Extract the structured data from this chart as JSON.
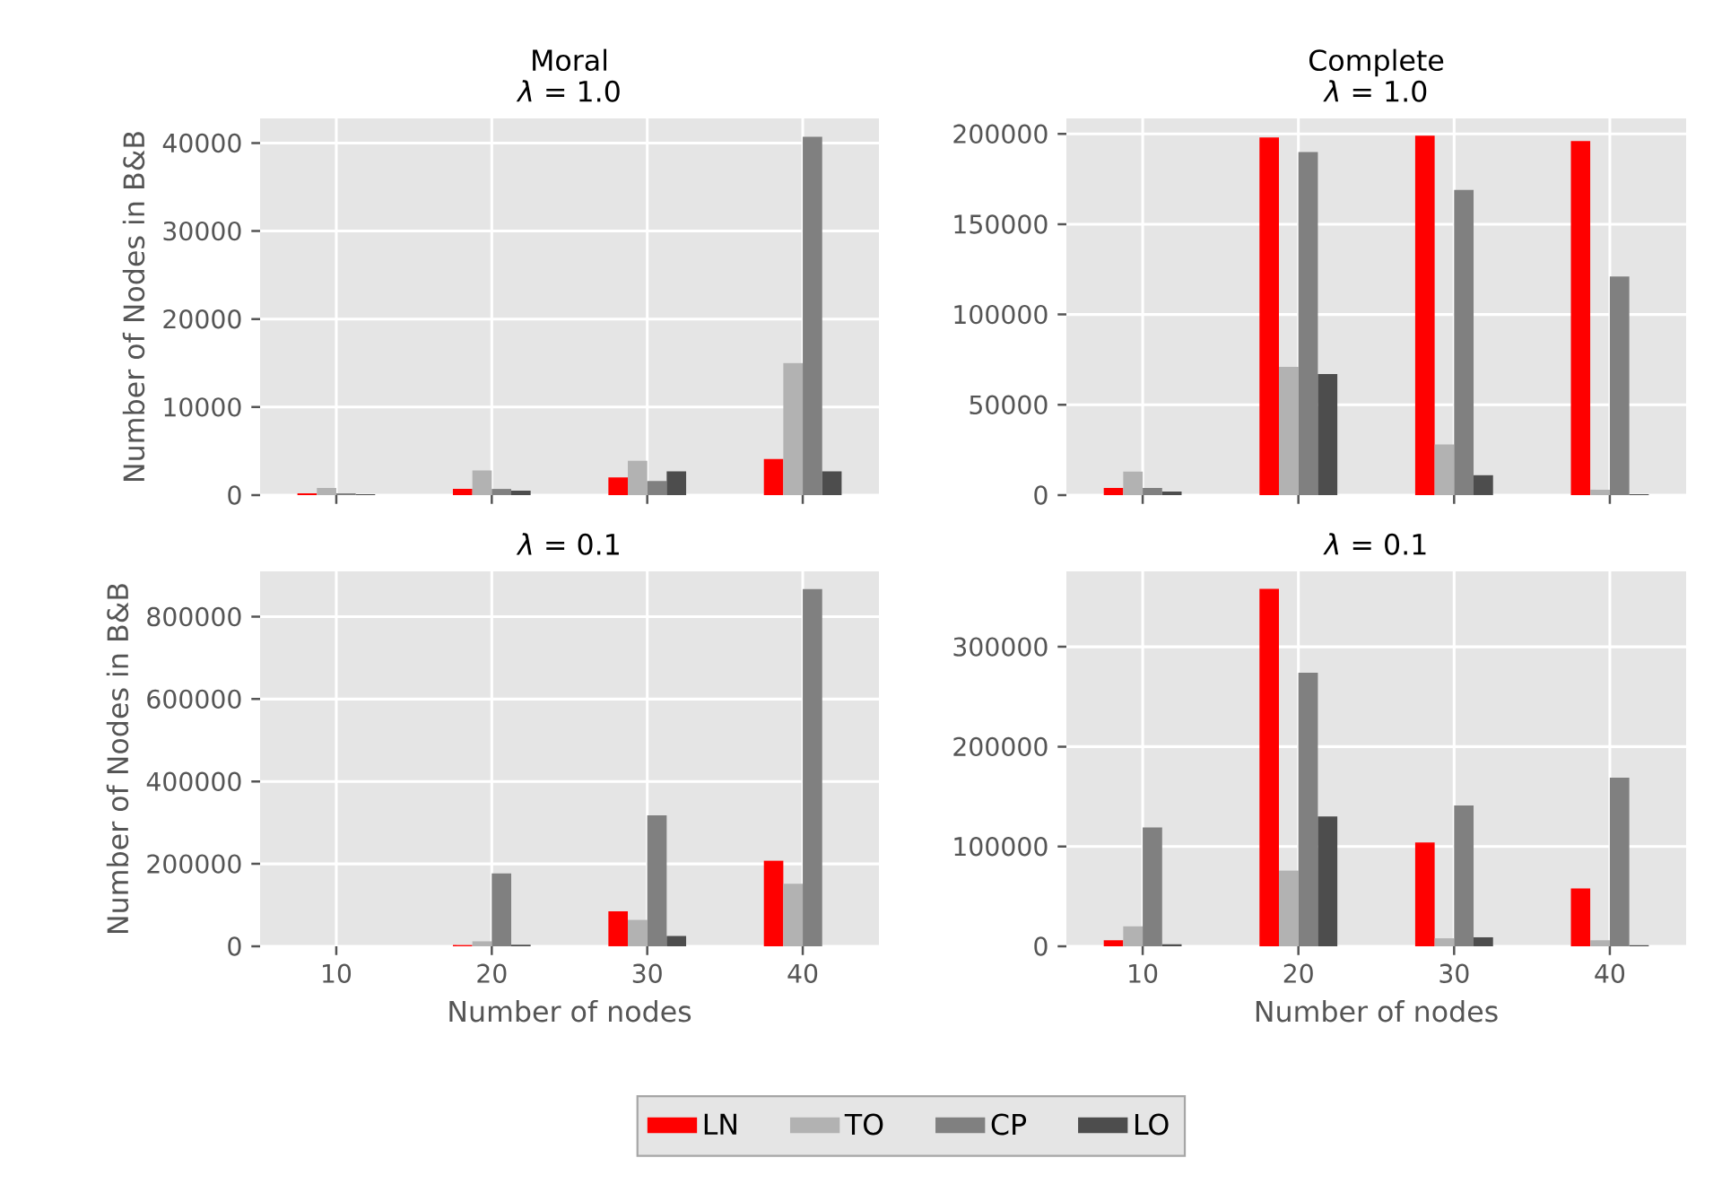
{
  "chart_data": [
    {
      "type": "bar",
      "title": "Moral",
      "subtitle": "*λ* = 1.0",
      "ylabel": "Number of Nodes in B&B",
      "x": [
        10,
        20,
        30,
        40
      ],
      "xlim": [
        5.1,
        44.9
      ],
      "xticks": [
        10,
        20,
        30,
        40
      ],
      "ylim": [
        0,
        42800
      ],
      "yticks": [
        0,
        10000,
        20000,
        30000,
        40000
      ],
      "grid": true,
      "tick_labels": "y",
      "series": [
        {
          "color": "#ff0000",
          "values": [
            200,
            700,
            2000,
            4100
          ]
        },
        {
          "color": "#b2b2b2",
          "values": [
            800,
            2800,
            3900,
            15000
          ]
        },
        {
          "color": "#808080",
          "values": [
            200,
            700,
            1600,
            40700
          ]
        },
        {
          "color": "#4d4d4d",
          "values": [
            100,
            500,
            2700,
            2700
          ]
        }
      ]
    },
    {
      "type": "bar",
      "title": "Complete",
      "subtitle": "*λ* = 1.0",
      "x": [
        10,
        20,
        30,
        40
      ],
      "xlim": [
        5.1,
        44.9
      ],
      "xticks": [
        10,
        20,
        30,
        40
      ],
      "ylim": [
        0,
        208600
      ],
      "yticks": [
        0,
        50000,
        100000,
        150000,
        200000
      ],
      "grid": true,
      "tick_labels": "y",
      "series": [
        {
          "color": "#ff0000",
          "values": [
            4000,
            198000,
            199000,
            196000
          ]
        },
        {
          "color": "#b2b2b2",
          "values": [
            13000,
            71000,
            28000,
            3000
          ]
        },
        {
          "color": "#808080",
          "values": [
            4000,
            190000,
            169000,
            121000
          ]
        },
        {
          "color": "#4d4d4d",
          "values": [
            2000,
            67000,
            11000,
            500
          ]
        }
      ]
    },
    {
      "type": "bar",
      "title": "*λ* = 0.1",
      "xlabel": "Number of nodes",
      "ylabel": "Number of Nodes in B&B",
      "x": [
        10,
        20,
        30,
        40
      ],
      "xlim": [
        5.1,
        44.9
      ],
      "xticks": [
        10,
        20,
        30,
        40
      ],
      "ylim": [
        0,
        910000
      ],
      "yticks": [
        0,
        200000,
        400000,
        600000,
        800000
      ],
      "grid": true,
      "legend": "bottom",
      "series": [
        {
          "name": "LN",
          "color": "#ff0000",
          "values": [
            0,
            3000,
            85000,
            208000
          ]
        },
        {
          "name": "TO",
          "color": "#b2b2b2",
          "values": [
            0,
            12000,
            64000,
            152000
          ]
        },
        {
          "name": "CP",
          "color": "#808080",
          "values": [
            0,
            177000,
            318000,
            867000
          ]
        },
        {
          "name": "LO",
          "color": "#4d4d4d",
          "values": [
            0,
            4000,
            25000,
            0
          ]
        }
      ]
    },
    {
      "type": "bar",
      "title": "*λ* = 0.1",
      "xlabel": "Number of nodes",
      "x": [
        10,
        20,
        30,
        40
      ],
      "xlim": [
        5.1,
        44.9
      ],
      "xticks": [
        10,
        20,
        30,
        40
      ],
      "ylim": [
        0,
        375600
      ],
      "yticks": [
        0,
        100000,
        200000,
        300000
      ],
      "grid": true,
      "series": [
        {
          "color": "#ff0000",
          "values": [
            6000,
            358000,
            104000,
            58000
          ]
        },
        {
          "color": "#b2b2b2",
          "values": [
            20000,
            76000,
            8000,
            6000
          ]
        },
        {
          "color": "#808080",
          "values": [
            119000,
            274000,
            141000,
            169000
          ]
        },
        {
          "color": "#4d4d4d",
          "values": [
            2000,
            130000,
            9000,
            1000
          ]
        }
      ]
    }
  ]
}
